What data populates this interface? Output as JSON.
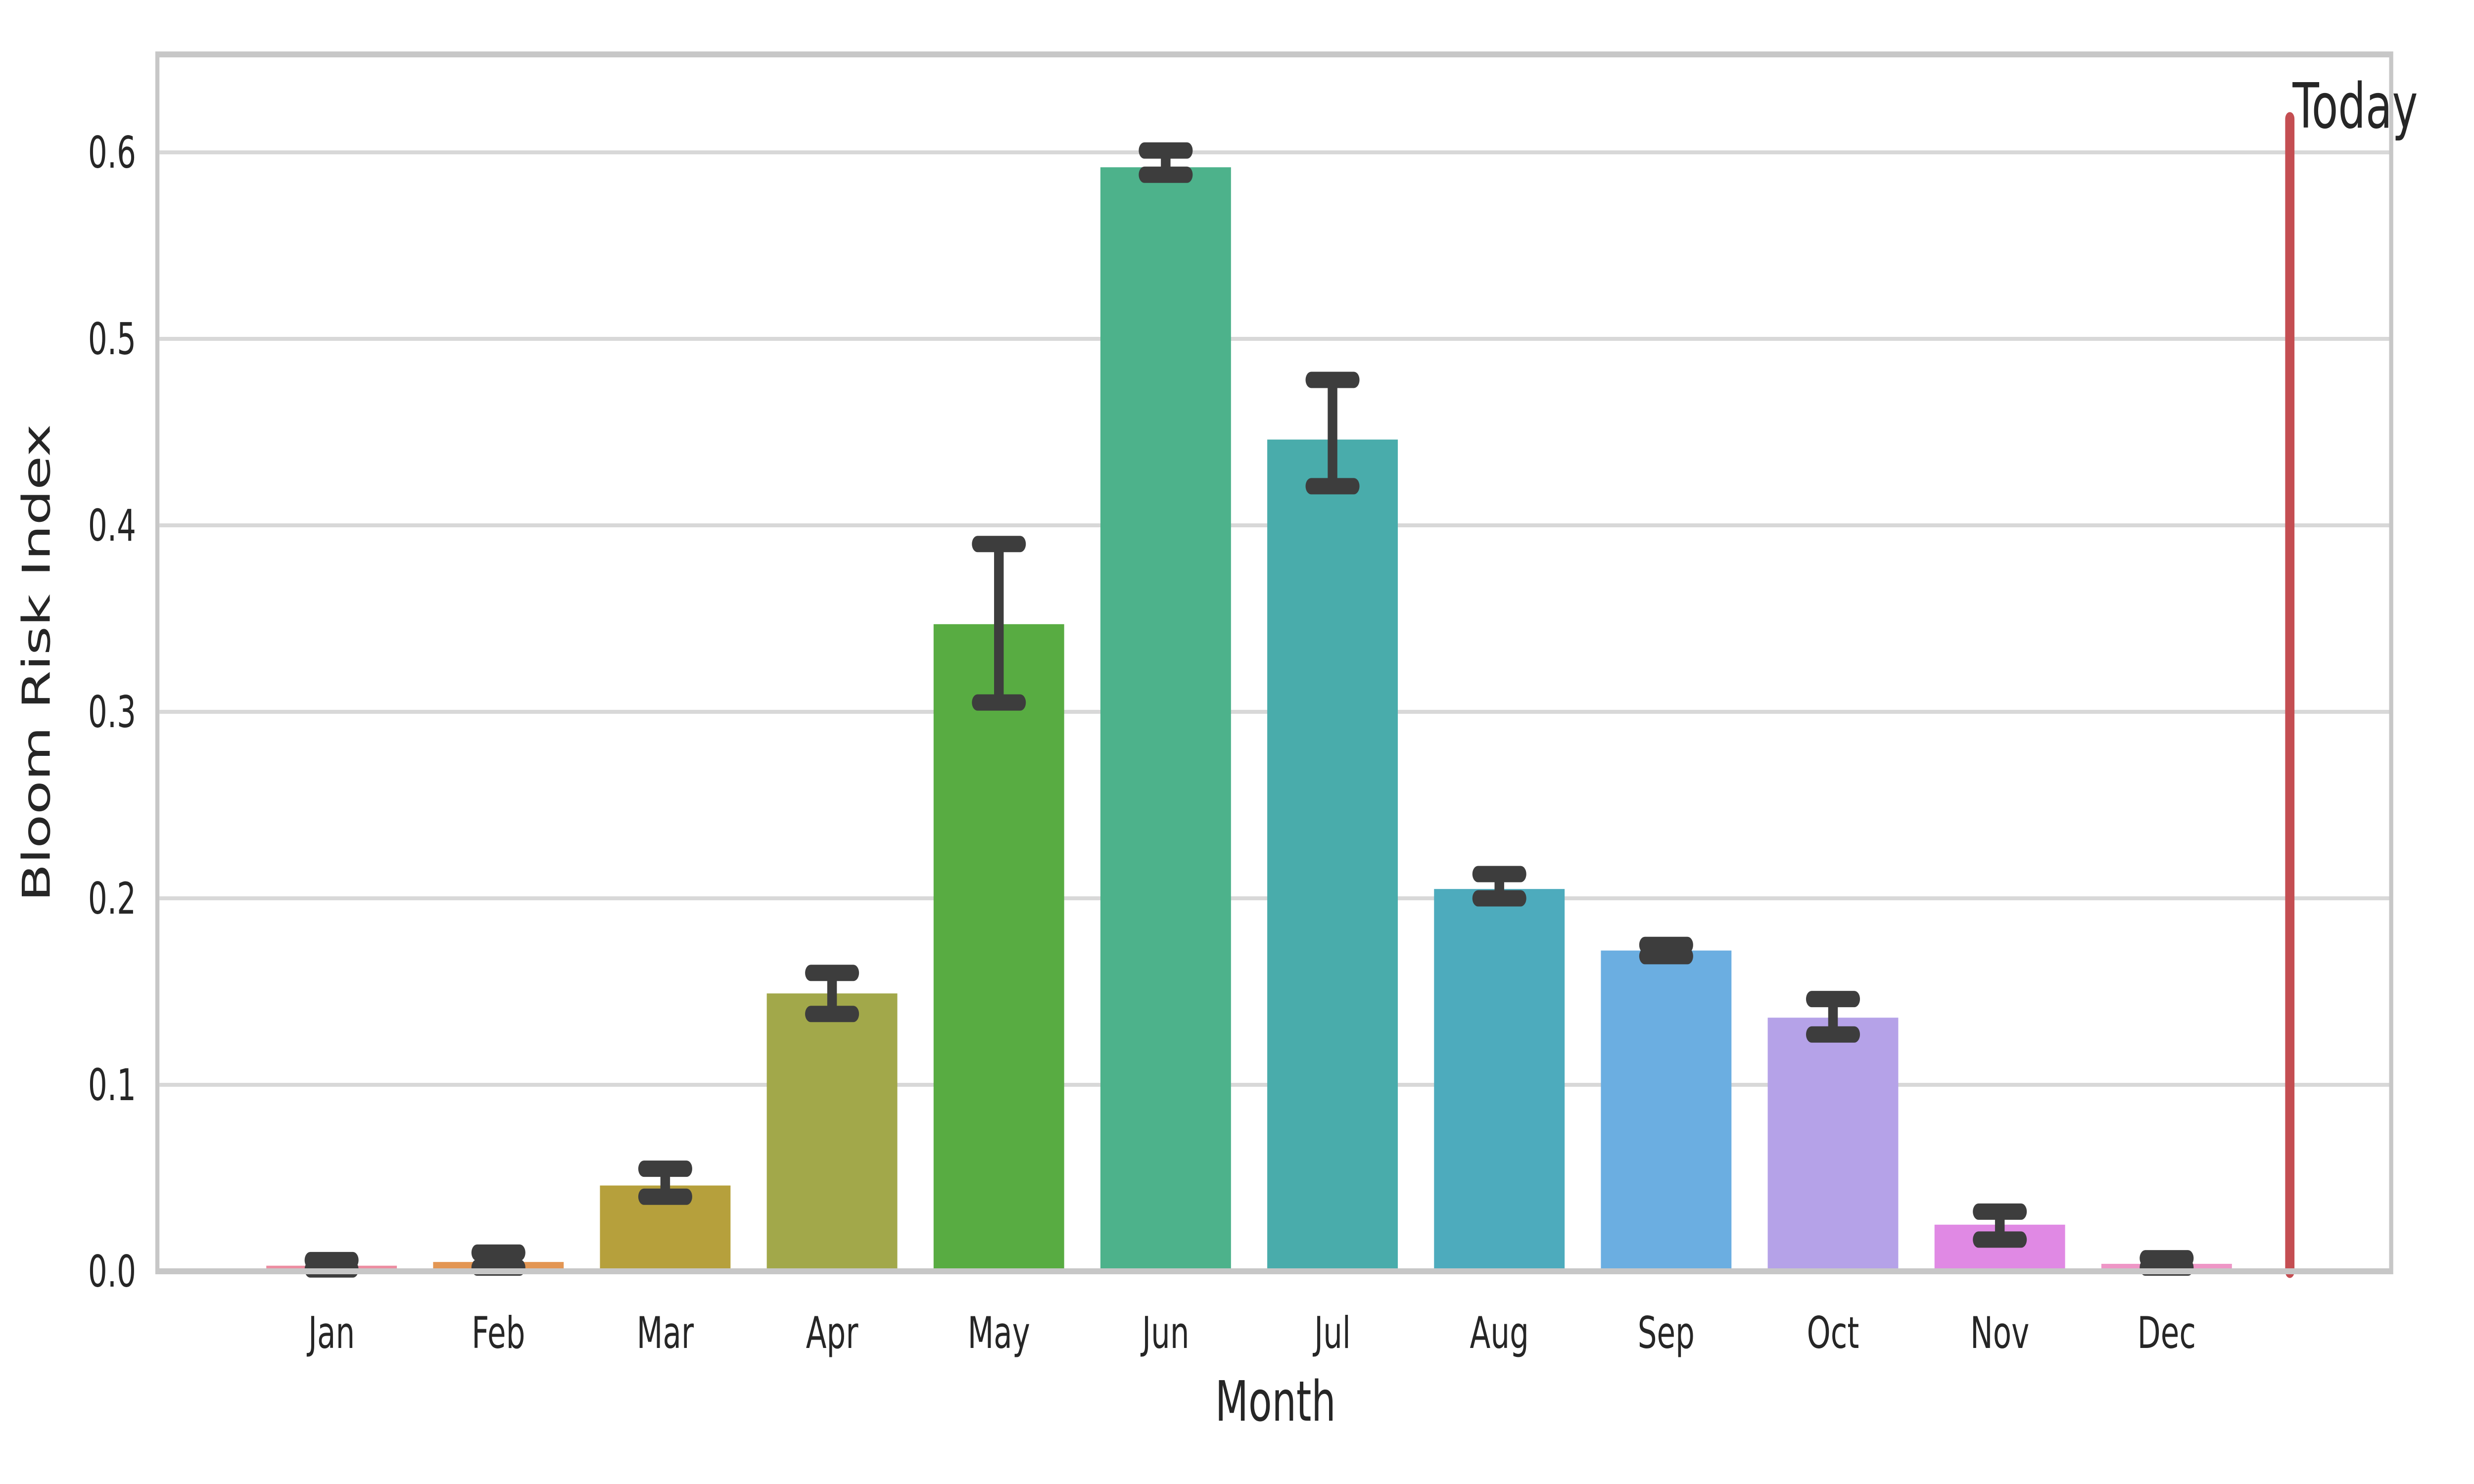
{
  "chart_data": {
    "type": "bar",
    "title": "",
    "xlabel": "Month",
    "ylabel": "Bloom Risk Index",
    "categories": [
      "Jan",
      "Feb",
      "Mar",
      "Apr",
      "May",
      "Jun",
      "Jul",
      "Aug",
      "Sep",
      "Oct",
      "Nov",
      "Dec"
    ],
    "series": [
      {
        "name": "Bloom Risk Index",
        "values": [
          0.003,
          0.005,
          0.046,
          0.149,
          0.347,
          0.592,
          0.446,
          0.205,
          0.172,
          0.136,
          0.025,
          0.004
        ],
        "error_low": [
          0.001,
          0.002,
          0.04,
          0.138,
          0.305,
          0.588,
          0.421,
          0.2,
          0.169,
          0.127,
          0.017,
          0.002
        ],
        "error_high": [
          0.006,
          0.01,
          0.055,
          0.16,
          0.39,
          0.601,
          0.478,
          0.213,
          0.175,
          0.146,
          0.032,
          0.007
        ]
      }
    ],
    "bar_colors": [
      "#ec8da1",
      "#e39653",
      "#b6a03c",
      "#a2a84a",
      "#58ac42",
      "#4db28b",
      "#49acab",
      "#4dabbd",
      "#6baee1",
      "#b5a2e8",
      "#e089e4",
      "#ee96c6"
    ],
    "error_bar_color": "#3d3d3d",
    "ylim": [
      0.0,
      0.653
    ],
    "yticks": [
      "0.0",
      "0.1",
      "0.2",
      "0.3",
      "0.4",
      "0.5",
      "0.6"
    ],
    "ytick_values": [
      0.0,
      0.1,
      0.2,
      0.3,
      0.4,
      0.5,
      0.6
    ],
    "grid": true,
    "legend_position": "none",
    "grid_color": "#d8d8d8",
    "spine_color": "#c7c7c7",
    "annotation": {
      "label": "Today",
      "value_top": 0.618,
      "line_color": "#c44e52",
      "label_color": "#ff6a50"
    }
  }
}
